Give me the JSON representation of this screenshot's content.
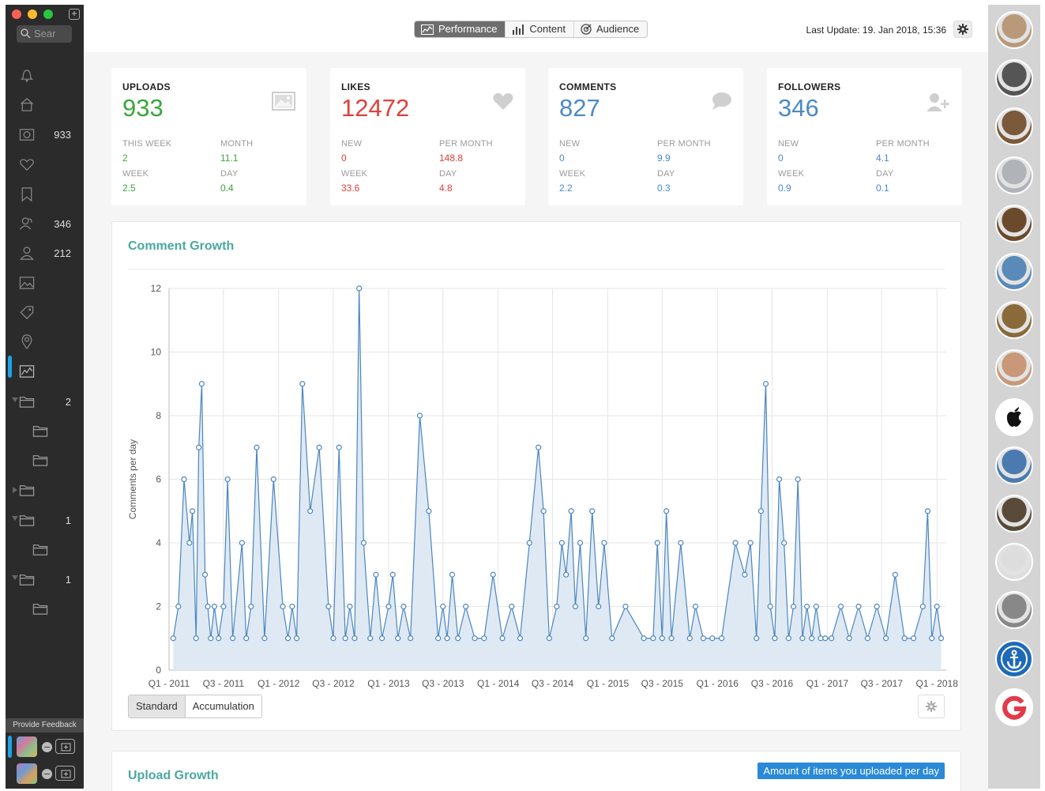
{
  "sidebar": {
    "search_placeholder": "Sear",
    "items": [
      {
        "name": "notifications",
        "icon": "bell-icon",
        "count": ""
      },
      {
        "name": "home",
        "icon": "home-icon",
        "count": ""
      },
      {
        "name": "uploads",
        "icon": "camera-icon",
        "count": "933"
      },
      {
        "name": "likes",
        "icon": "heart-icon",
        "count": ""
      },
      {
        "name": "saved",
        "icon": "bookmark-icon",
        "count": ""
      },
      {
        "name": "followers",
        "icon": "users-icon",
        "count": "346"
      },
      {
        "name": "following",
        "icon": "user-icon",
        "count": "212"
      },
      {
        "name": "media",
        "icon": "image-icon",
        "count": ""
      },
      {
        "name": "tags",
        "icon": "tag-icon",
        "count": ""
      },
      {
        "name": "locations",
        "icon": "pin-icon",
        "count": ""
      },
      {
        "name": "statistics",
        "icon": "chart-icon",
        "count": ""
      },
      {
        "name": "folder-1",
        "icon": "folder-icon",
        "count": "2"
      },
      {
        "name": "folder-1a",
        "icon": "folder-icon",
        "count": ""
      },
      {
        "name": "folder-1b",
        "icon": "folder-icon",
        "count": ""
      },
      {
        "name": "folder-2",
        "icon": "folder-icon",
        "count": ""
      },
      {
        "name": "folder-3",
        "icon": "folder-icon",
        "count": "1"
      },
      {
        "name": "folder-3a",
        "icon": "folder-icon",
        "count": ""
      },
      {
        "name": "folder-4",
        "icon": "folder-icon",
        "count": "1"
      },
      {
        "name": "folder-4a",
        "icon": "folder-icon",
        "count": ""
      }
    ],
    "feedback_label": "Provide Feedback"
  },
  "toolbar": {
    "tabs": [
      {
        "label": "Performance",
        "icon": "chart-line-icon",
        "active": true
      },
      {
        "label": "Content",
        "icon": "bar-chart-icon",
        "active": false
      },
      {
        "label": "Audience",
        "icon": "target-icon",
        "active": false
      }
    ],
    "last_update": "Last Update: 19. Jan 2018, 15:36"
  },
  "cards": [
    {
      "title": "UPLOADS",
      "value": "933",
      "color": "#3aa63a",
      "icon": "image-icon",
      "stats": [
        [
          "THIS WEEK",
          "2"
        ],
        [
          "MONTH",
          "11.1"
        ],
        [
          "WEEK",
          "2.5"
        ],
        [
          "DAY",
          "0.4"
        ]
      ]
    },
    {
      "title": "LIKES",
      "value": "12472",
      "color": "#e0403a",
      "icon": "heart-icon",
      "stats": [
        [
          "NEW",
          "0"
        ],
        [
          "PER MONTH",
          "148.8"
        ],
        [
          "WEEK",
          "33.6"
        ],
        [
          "DAY",
          "4.8"
        ]
      ]
    },
    {
      "title": "COMMENTS",
      "value": "827",
      "color": "#4a8ac8",
      "icon": "comment-icon",
      "stats": [
        [
          "NEW",
          "0"
        ],
        [
          "PER MONTH",
          "9.9"
        ],
        [
          "WEEK",
          "2.2"
        ],
        [
          "DAY",
          "0.3"
        ]
      ]
    },
    {
      "title": "FOLLOWERS",
      "value": "346",
      "color": "#4a8ac8",
      "icon": "add-user-icon",
      "stats": [
        [
          "NEW",
          "0"
        ],
        [
          "PER MONTH",
          "4.1"
        ],
        [
          "WEEK",
          "0.9"
        ],
        [
          "DAY",
          "0.1"
        ]
      ]
    }
  ],
  "comment_growth": {
    "title": "Comment Growth",
    "modes": [
      "Standard",
      "Accumulation"
    ],
    "active_mode": "Standard"
  },
  "upload_growth": {
    "title": "Upload Growth",
    "tag": "Amount of items you uploaded per day"
  },
  "chart_data": {
    "type": "area",
    "title": "Comment Growth",
    "xlabel": "",
    "ylabel": "Comments per day",
    "ylim": [
      0,
      12
    ],
    "yticks": [
      0,
      2,
      4,
      6,
      8,
      10,
      12
    ],
    "xlim": [
      "2011-01-01",
      "2018-02-01"
    ],
    "xticks": [
      "Q1 - 2011",
      "Q3 - 2011",
      "Q1 - 2012",
      "Q3 - 2012",
      "Q1 - 2013",
      "Q3 - 2013",
      "Q1 - 2014",
      "Q3 - 2014",
      "Q1 - 2015",
      "Q3 - 2015",
      "Q1 - 2016",
      "Q3 - 2016",
      "Q1 - 2017",
      "Q3 - 2017",
      "Q1 - 2018"
    ],
    "grid": true,
    "color": "#4a86c0",
    "fill": "#dfe9f4",
    "series": [
      {
        "x": [
          "2011-01-15",
          "2011-02-01",
          "2011-02-20",
          "2011-03-10",
          "2011-03-20",
          "2011-04-01",
          "2011-04-10",
          "2011-04-20",
          "2011-05-01",
          "2011-05-10",
          "2011-05-20",
          "2011-06-01",
          "2011-06-15",
          "2011-07-01",
          "2011-07-15",
          "2011-08-01",
          "2011-09-01",
          "2011-09-15",
          "2011-10-01",
          "2011-10-20",
          "2011-11-15",
          "2011-12-15",
          "2012-01-15",
          "2012-02-01",
          "2012-02-15",
          "2012-03-01",
          "2012-03-20",
          "2012-04-15",
          "2012-05-15",
          "2012-06-15",
          "2012-07-01",
          "2012-07-20",
          "2012-08-10",
          "2012-08-25",
          "2012-09-10",
          "2012-09-25",
          "2012-10-10",
          "2012-11-01",
          "2012-11-20",
          "2012-12-10",
          "2013-01-01",
          "2013-01-15",
          "2013-02-01",
          "2013-02-20",
          "2013-03-15",
          "2013-04-15",
          "2013-05-15",
          "2013-06-15",
          "2013-07-01",
          "2013-07-15",
          "2013-08-01",
          "2013-08-20",
          "2013-09-15",
          "2013-10-15",
          "2013-11-15",
          "2013-12-15",
          "2014-01-15",
          "2014-02-15",
          "2014-03-15",
          "2014-04-15",
          "2014-05-15",
          "2014-06-01",
          "2014-06-20",
          "2014-07-15",
          "2014-08-01",
          "2014-08-15",
          "2014-09-01",
          "2014-09-15",
          "2014-10-01",
          "2014-10-20",
          "2014-11-10",
          "2014-12-01",
          "2014-12-20",
          "2015-01-15",
          "2015-03-01",
          "2015-05-01",
          "2015-06-01",
          "2015-06-15",
          "2015-07-01",
          "2015-07-15",
          "2015-08-01",
          "2015-09-01",
          "2015-10-01",
          "2015-10-20",
          "2015-11-15",
          "2015-12-15",
          "2016-01-15",
          "2016-03-01",
          "2016-04-01",
          "2016-04-20",
          "2016-05-10",
          "2016-05-25",
          "2016-06-10",
          "2016-06-25",
          "2016-07-10",
          "2016-07-25",
          "2016-08-10",
          "2016-08-25",
          "2016-09-10",
          "2016-09-25",
          "2016-10-10",
          "2016-10-25",
          "2016-11-10",
          "2016-11-25",
          "2016-12-10",
          "2016-12-25",
          "2017-01-15",
          "2017-02-15",
          "2017-03-15",
          "2017-04-15",
          "2017-05-15",
          "2017-06-15",
          "2017-07-15",
          "2017-08-15",
          "2017-09-15",
          "2017-10-15",
          "2017-11-15",
          "2017-12-01",
          "2017-12-15",
          "2018-01-01",
          "2018-01-15"
        ],
        "y": [
          1,
          2,
          6,
          4,
          5,
          1,
          7,
          9,
          3,
          2,
          1,
          2,
          1,
          2,
          6,
          1,
          4,
          1,
          2,
          7,
          1,
          6,
          2,
          1,
          2,
          1,
          9,
          5,
          7,
          2,
          1,
          7,
          1,
          2,
          1,
          12,
          4,
          1,
          3,
          1,
          2,
          3,
          1,
          2,
          1,
          8,
          5,
          1,
          2,
          1,
          3,
          1,
          2,
          1,
          1,
          3,
          1,
          2,
          1,
          4,
          7,
          5,
          1,
          2,
          4,
          3,
          5,
          2,
          4,
          1,
          5,
          2,
          4,
          1,
          2,
          1,
          1,
          4,
          1,
          5,
          1,
          4,
          1,
          2,
          1,
          1,
          1,
          4,
          3,
          4,
          1,
          5,
          9,
          2,
          1,
          6,
          4,
          1,
          2,
          6,
          1,
          2,
          1,
          2,
          1,
          1,
          1,
          2,
          1,
          2,
          1,
          2,
          1,
          3,
          1,
          1,
          2,
          5,
          1,
          2,
          1
        ]
      }
    ]
  },
  "right_avatars": [
    {
      "name": "avatar-1",
      "color": "#b89a7a"
    },
    {
      "name": "avatar-2",
      "color": "#555555"
    },
    {
      "name": "avatar-3",
      "color": "#7a5a3a"
    },
    {
      "name": "avatar-4",
      "color": "#b0b4b8"
    },
    {
      "name": "avatar-5",
      "color": "#6a4a2a"
    },
    {
      "name": "avatar-6",
      "color": "#5a8ab8"
    },
    {
      "name": "avatar-7",
      "color": "#8a6a3a"
    },
    {
      "name": "avatar-8",
      "color": "#c89878"
    },
    {
      "name": "avatar-9",
      "color": "#ffffff",
      "icon": "apple-icon"
    },
    {
      "name": "avatar-10",
      "color": "#4a7ab0"
    },
    {
      "name": "avatar-11",
      "color": "#5a4a3a"
    },
    {
      "name": "avatar-12",
      "color": "#dddddd"
    },
    {
      "name": "avatar-13",
      "color": "#888888"
    },
    {
      "name": "avatar-14",
      "color": "#1f6ab8",
      "icon": "anchor-icon"
    },
    {
      "name": "avatar-15",
      "color": "#ffffff",
      "icon": "g-logo-icon"
    }
  ]
}
